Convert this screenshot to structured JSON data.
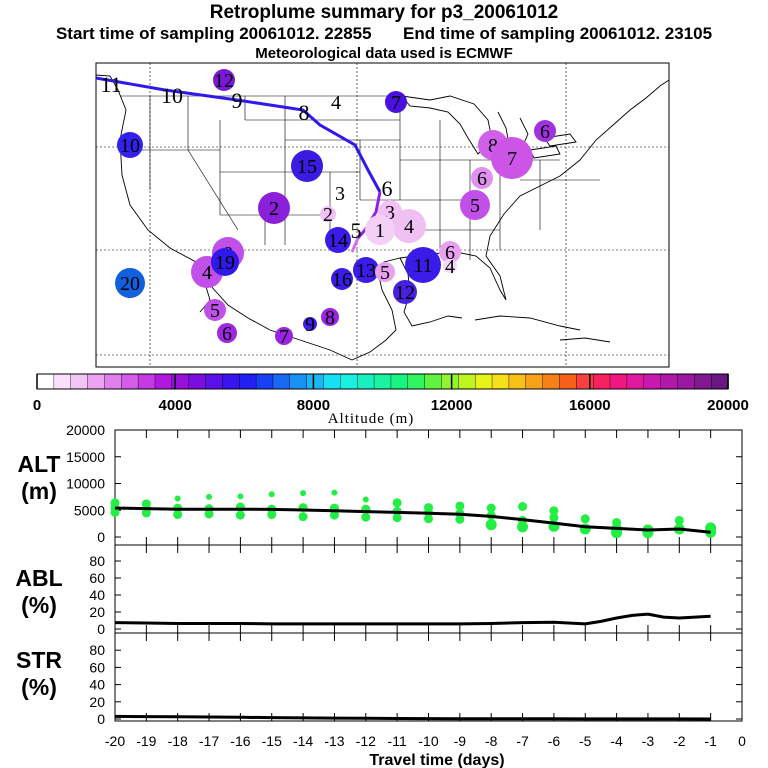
{
  "title": "Retroplume summary for p3_20061012",
  "start_label": "Start time of sampling",
  "start_value": "20061012. 22855",
  "end_label": "End time of sampling",
  "end_value": "20061012. 23105",
  "met_label": "Meteorological data used is ECMWF",
  "map": {
    "type": "trajectory-map",
    "path_labels": [
      "11",
      "10",
      "9",
      "8",
      "6",
      "5"
    ],
    "clusters": [
      {
        "label": "12",
        "color": "#7a18d8",
        "alt": 3800
      },
      {
        "label": "4",
        "color": "#ffffff",
        "alt": 0
      },
      {
        "label": "7",
        "color": "#4a10e0",
        "alt": 4200
      },
      {
        "label": "10",
        "color": "#3322ee",
        "alt": 4400
      },
      {
        "label": "15",
        "color": "#3a1ce0",
        "alt": 4300
      },
      {
        "label": "8",
        "color": "#d060e8",
        "alt": 2400
      },
      {
        "label": "7",
        "color": "#cc55e8",
        "alt": 2500
      },
      {
        "label": "6",
        "color": "#a030e0",
        "alt": 3000
      },
      {
        "label": "6",
        "color": "#e090f0",
        "alt": 1800
      },
      {
        "label": "5",
        "color": "#c050e8",
        "alt": 2600
      },
      {
        "label": "2",
        "color": "#8a20d8",
        "alt": 3500
      },
      {
        "label": "3",
        "color": "#ffffff",
        "alt": 0
      },
      {
        "label": "2",
        "color": "#f2c2f4",
        "alt": 1000
      },
      {
        "label": "3",
        "color": "#f2c2f4",
        "alt": 1000
      },
      {
        "label": "4",
        "color": "#f0c0f2",
        "alt": 1100
      },
      {
        "label": "1",
        "color": "#f4d0f6",
        "alt": 800
      },
      {
        "label": "8",
        "color": "#c050e8",
        "alt": 2600
      },
      {
        "label": "4",
        "color": "#c050e8",
        "alt": 2600
      },
      {
        "label": "19",
        "color": "#3018e8",
        "alt": 4500
      },
      {
        "label": "20",
        "color": "#1060e0",
        "alt": 5500
      },
      {
        "label": "5",
        "color": "#c050e8",
        "alt": 2600
      },
      {
        "label": "6",
        "color": "#a028e0",
        "alt": 3000
      },
      {
        "label": "7",
        "color": "#9a24e0",
        "alt": 3200
      },
      {
        "label": "9",
        "color": "#4020e8",
        "alt": 4400
      },
      {
        "label": "8",
        "color": "#9a24e0",
        "alt": 3200
      },
      {
        "label": "16",
        "color": "#3a1ce8",
        "alt": 4300
      },
      {
        "label": "13",
        "color": "#3a1ce8",
        "alt": 4300
      },
      {
        "label": "5",
        "color": "#e8a0f0",
        "alt": 1500
      },
      {
        "label": "11",
        "color": "#3a1ce8",
        "alt": 4300
      },
      {
        "label": "12",
        "color": "#4a20e0",
        "alt": 4200
      },
      {
        "label": "6",
        "color": "#e8a0f0",
        "alt": 1500
      },
      {
        "label": "4",
        "color": "#f6d8f8",
        "alt": 800
      },
      {
        "label": "14",
        "color": "#3a1ce8",
        "alt": 4300
      }
    ]
  },
  "colorbar": {
    "title": "Altitude (m)",
    "tick_labels": [
      "0",
      "4000",
      "8000",
      "12000",
      "16000",
      "20000"
    ],
    "min": 0,
    "max": 20000,
    "colors": [
      "#ffffff",
      "#fbe0fb",
      "#f4c4f4",
      "#eca4f0",
      "#e080ec",
      "#d45ce8",
      "#c43ae4",
      "#b018e0",
      "#9810dc",
      "#7a0ee0",
      "#5a10e8",
      "#3a14ee",
      "#2020f4",
      "#1840f4",
      "#1868f4",
      "#1890f4",
      "#18b8f4",
      "#18e0f4",
      "#18f0e0",
      "#18f0c0",
      "#18f4a0",
      "#18f480",
      "#30f460",
      "#60f440",
      "#90f430",
      "#c0f420",
      "#e8f418",
      "#f8e018",
      "#f8c018",
      "#f8a018",
      "#f88018",
      "#f86018",
      "#f84040",
      "#f82060",
      "#f01880",
      "#e018a0",
      "#c818b0",
      "#b018a8",
      "#9818a0",
      "#801890",
      "#681880"
    ]
  },
  "chart_data": [
    {
      "type": "scatter",
      "panel": "ALT",
      "ylabel": "ALT\n(m)",
      "ylabel_line1": "ALT",
      "ylabel_line2": "(m)",
      "ylim": [
        0,
        20000
      ],
      "yticks": [
        "20000",
        "15000",
        "10000",
        "5000",
        "0"
      ],
      "xlim": [
        -20,
        0
      ],
      "line": {
        "x": [
          -20,
          -19,
          -18,
          -17,
          -16,
          -15,
          -14,
          -13,
          -12,
          -11,
          -10,
          -9,
          -8,
          -7,
          -6,
          -5,
          -4,
          -3,
          -2,
          -1
        ],
        "y": [
          5400,
          5300,
          5200,
          5200,
          5200,
          5150,
          5050,
          4900,
          4750,
          4600,
          4450,
          4250,
          3850,
          3250,
          2600,
          1900,
          1600,
          1300,
          1500,
          900
        ]
      },
      "points": {
        "x": [
          -20,
          -20,
          -20,
          -19,
          -19,
          -19,
          -18,
          -18,
          -18,
          -17,
          -17,
          -17,
          -16,
          -16,
          -16,
          -15,
          -15,
          -15,
          -14,
          -14,
          -14,
          -13,
          -13,
          -13,
          -12,
          -12,
          -12,
          -11,
          -11,
          -11,
          -10,
          -10,
          -10,
          -9,
          -9,
          -9,
          -8,
          -8,
          -8,
          -7,
          -7,
          -7,
          -6,
          -6,
          -6,
          -5,
          -5,
          -4,
          -4,
          -4,
          -3,
          -3,
          -2,
          -2,
          -1,
          -1
        ],
        "y": [
          6400,
          5400,
          4600,
          6200,
          5200,
          4500,
          7200,
          5400,
          4200,
          7500,
          5300,
          4300,
          7600,
          5600,
          4100,
          8000,
          5200,
          4200,
          8200,
          5500,
          3800,
          8300,
          5400,
          4100,
          7000,
          5200,
          3700,
          6400,
          4800,
          3600,
          5500,
          4600,
          3400,
          5800,
          4400,
          3300,
          5400,
          4000,
          2300,
          5700,
          3100,
          1900,
          4900,
          3600,
          2000,
          3400,
          1500,
          2700,
          1500,
          800,
          1300,
          800,
          3100,
          1500,
          1700,
          900
        ]
      }
    },
    {
      "type": "line",
      "panel": "ABL",
      "ylabel_line1": "ABL",
      "ylabel_line2": "(%)",
      "ylim": [
        0,
        100
      ],
      "yticks": [
        "80",
        "60",
        "40",
        "20",
        "0"
      ],
      "x": [
        -20,
        -19,
        -18,
        -17,
        -16,
        -15,
        -14,
        -13,
        -12,
        -11,
        -10,
        -9,
        -8,
        -7,
        -6,
        -5,
        -4.5,
        -4,
        -3.5,
        -3,
        -2.5,
        -2,
        -1.5,
        -1
      ],
      "y": [
        7.5,
        7,
        6.5,
        6.5,
        6.5,
        6,
        6,
        6,
        6,
        6,
        6,
        6,
        6.5,
        7.5,
        8,
        6,
        9,
        13,
        16,
        17.5,
        14,
        13,
        14,
        15
      ]
    },
    {
      "type": "line",
      "panel": "STR",
      "ylabel_line1": "STR",
      "ylabel_line2": "(%)",
      "ylim": [
        0,
        100
      ],
      "yticks": [
        "80",
        "60",
        "40",
        "20",
        "0"
      ],
      "x": [
        -20,
        -19,
        -18,
        -17,
        -16,
        -15,
        -14,
        -13,
        -12,
        -11,
        -10,
        -9,
        -8,
        -7,
        -6,
        -5,
        -4,
        -3,
        -2,
        -1
      ],
      "y": [
        3,
        2.8,
        2.6,
        2.3,
        2,
        1.6,
        1.3,
        1,
        0.8,
        0.6,
        0.5,
        0.4,
        0.3,
        0.2,
        0.2,
        0.1,
        0.1,
        0.1,
        0.1,
        0
      ],
      "xlabel": "Travel time (days)",
      "xticks": [
        "-20",
        "-19",
        "-18",
        "-17",
        "-16",
        "-15",
        "-14",
        "-13",
        "-12",
        "-11",
        "-10",
        "-9",
        "-8",
        "-7",
        "-6",
        "-5",
        "-4",
        "-3",
        "-2",
        "-1",
        "0"
      ]
    }
  ]
}
